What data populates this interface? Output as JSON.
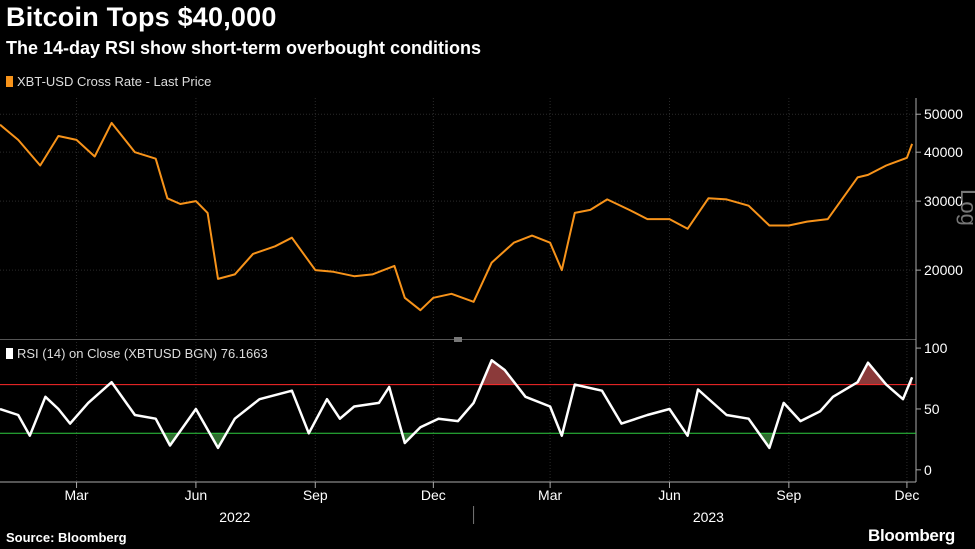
{
  "header": {
    "title": "Bitcoin Tops $40,000",
    "subtitle": "The 14-day RSI show short-term overbought conditions"
  },
  "footer": {
    "source": "Source: Bloomberg",
    "brand": "Bloomberg"
  },
  "chart_data": [
    {
      "type": "line",
      "legend": "XBT-USD Cross Rate - Last Price",
      "scale_label": "Log",
      "y_scale": "log",
      "ylim": [
        13500,
        55000
      ],
      "y_ticks": [
        20000,
        30000,
        40000,
        50000
      ],
      "y_tick_labels": [
        "20000",
        "30000",
        "40000",
        "50000"
      ],
      "color": "#f7931a",
      "x": [
        "2022-01-01",
        "2022-01-15",
        "2022-02-01",
        "2022-02-15",
        "2022-03-01",
        "2022-03-15",
        "2022-03-28",
        "2022-04-15",
        "2022-05-01",
        "2022-05-10",
        "2022-05-20",
        "2022-06-01",
        "2022-06-10",
        "2022-06-18",
        "2022-07-01",
        "2022-07-15",
        "2022-08-01",
        "2022-08-14",
        "2022-09-01",
        "2022-09-15",
        "2022-10-01",
        "2022-10-15",
        "2022-11-01",
        "2022-11-09",
        "2022-11-21",
        "2022-12-01",
        "2022-12-15",
        "2023-01-01",
        "2023-01-15",
        "2023-02-01",
        "2023-02-15",
        "2023-03-01",
        "2023-03-10",
        "2023-03-20",
        "2023-04-01",
        "2023-04-14",
        "2023-05-01",
        "2023-05-15",
        "2023-06-01",
        "2023-06-15",
        "2023-07-01",
        "2023-07-15",
        "2023-08-01",
        "2023-08-17",
        "2023-09-01",
        "2023-09-15",
        "2023-10-01",
        "2023-10-24",
        "2023-11-01",
        "2023-11-15",
        "2023-12-01",
        "2023-12-05"
      ],
      "y": [
        47000,
        43000,
        37000,
        44000,
        43000,
        39000,
        47500,
        40000,
        38500,
        30500,
        29500,
        30000,
        28000,
        19000,
        19500,
        22000,
        23000,
        24200,
        20000,
        19800,
        19300,
        19500,
        20500,
        17000,
        15800,
        17000,
        17400,
        16600,
        20900,
        23500,
        24500,
        23500,
        20000,
        28000,
        28500,
        30300,
        28500,
        27000,
        27000,
        25500,
        30500,
        30300,
        29200,
        26000,
        26000,
        26600,
        27000,
        34500,
        35000,
        37000,
        38700,
        42000
      ]
    },
    {
      "type": "line",
      "legend": "RSI (14)  on Close (XBTUSD BGN) 76.1663",
      "ylim": [
        -10,
        105
      ],
      "y_ticks": [
        0,
        50,
        100
      ],
      "y_tick_labels": [
        "0",
        "50",
        "100"
      ],
      "overbought": 70,
      "oversold": 30,
      "colors": {
        "line": "#ffffff",
        "overbought_line": "#ff2a2a",
        "oversold_line": "#2ecc40",
        "overbought_fill": "#8b3a3a",
        "oversold_fill": "#2e6b2e"
      },
      "x": [
        "2022-01-01",
        "2022-01-15",
        "2022-01-24",
        "2022-02-05",
        "2022-02-15",
        "2022-02-24",
        "2022-03-10",
        "2022-03-28",
        "2022-04-15",
        "2022-05-01",
        "2022-05-12",
        "2022-06-01",
        "2022-06-18",
        "2022-07-01",
        "2022-07-20",
        "2022-08-14",
        "2022-08-27",
        "2022-09-10",
        "2022-09-20",
        "2022-10-01",
        "2022-10-20",
        "2022-10-28",
        "2022-11-09",
        "2022-11-21",
        "2022-12-05",
        "2022-12-20",
        "2023-01-01",
        "2023-01-15",
        "2023-01-25",
        "2023-02-10",
        "2023-03-01",
        "2023-03-10",
        "2023-03-20",
        "2023-04-10",
        "2023-04-25",
        "2023-05-15",
        "2023-06-01",
        "2023-06-15",
        "2023-06-23",
        "2023-07-15",
        "2023-08-01",
        "2023-08-17",
        "2023-08-28",
        "2023-09-10",
        "2023-09-25",
        "2023-10-05",
        "2023-10-24",
        "2023-11-01",
        "2023-11-15",
        "2023-11-28",
        "2023-12-05"
      ],
      "y": [
        50,
        45,
        28,
        60,
        50,
        38,
        55,
        72,
        45,
        42,
        20,
        50,
        18,
        42,
        58,
        65,
        30,
        58,
        42,
        52,
        55,
        68,
        22,
        35,
        42,
        40,
        55,
        90,
        82,
        60,
        52,
        28,
        70,
        65,
        38,
        45,
        50,
        28,
        66,
        45,
        42,
        18,
        55,
        40,
        48,
        60,
        72,
        88,
        70,
        58,
        76
      ]
    }
  ],
  "x_axis": {
    "months": [
      "Mar",
      "Jun",
      "Sep",
      "Dec",
      "Mar",
      "Jun",
      "Sep",
      "Dec"
    ],
    "month_dates": [
      "2022-03-01",
      "2022-06-01",
      "2022-09-01",
      "2022-12-01",
      "2023-03-01",
      "2023-06-01",
      "2023-09-01",
      "2023-12-01"
    ],
    "years": [
      "2022",
      "2023"
    ],
    "year_dates": [
      "2022-07-01",
      "2023-07-01"
    ],
    "range": [
      "2022-01-01",
      "2023-12-08"
    ]
  }
}
